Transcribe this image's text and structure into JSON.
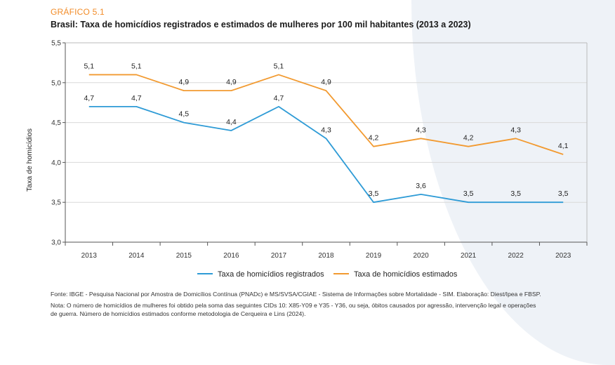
{
  "figure": {
    "kicker": "GRÁFICO 5.1",
    "title": "Brasil: Taxa de homicídios registrados e estimados de mulheres por 100 mil habitantes (2013 a 2023)",
    "source": "Fonte: IBGE - Pesquisa Nacional por Amostra de Domicílios Contínua (PNADc) e MS/SVSA/CGIAE - Sistema de Informações sobre Mortalidade - SIM. Elaboração: Diest/Ipea e FBSP.",
    "note_line1": "Nota: O número de homicídios de mulheres foi obtido pela soma das seguintes CIDs 10: X85-Y09 e Y35 - Y36, ou seja, óbitos causados por agressão, intervenção legal e operações",
    "note_line2": "de guerra. Número de homicídios estimados conforme metodologia de Cerqueira e Lins (2024)."
  },
  "chart_data": {
    "type": "line",
    "title": "Brasil: Taxa de homicídios registrados e estimados de mulheres por 100 mil habitantes (2013 a 2023)",
    "xlabel": "",
    "ylabel": "Taxa de homicídios",
    "x": [
      "2013",
      "2014",
      "2015",
      "2016",
      "2017",
      "2018",
      "2019",
      "2020",
      "2021",
      "2022",
      "2023"
    ],
    "ylim": [
      3.0,
      5.5
    ],
    "yticks": [
      3.0,
      3.5,
      4.0,
      4.5,
      5.0,
      5.5
    ],
    "ytick_labels": [
      "3,0",
      "3,5",
      "4,0",
      "4,5",
      "5,0",
      "5,5"
    ],
    "grid": "horizontal",
    "legend_position": "bottom",
    "series": [
      {
        "name": "Taxa de homicídios registrados",
        "color": "#2e9bd6",
        "values": [
          4.7,
          4.7,
          4.5,
          4.4,
          4.7,
          4.3,
          3.5,
          3.6,
          3.5,
          3.5,
          3.5
        ],
        "labels": [
          "4,7",
          "4,7",
          "4,5",
          "4,4",
          "4,7",
          "4,3",
          "3,5",
          "3,6",
          "3,5",
          "3,5",
          "3,5"
        ]
      },
      {
        "name": "Taxa de homicídios estimados",
        "color": "#f29a30",
        "values": [
          5.1,
          5.1,
          4.9,
          4.9,
          5.1,
          4.9,
          4.2,
          4.3,
          4.2,
          4.3,
          4.1
        ],
        "labels": [
          "5,1",
          "5,1",
          "4,9",
          "4,9",
          "5,1",
          "4,9",
          "4,2",
          "4,3",
          "4,2",
          "4,3",
          "4,1"
        ]
      }
    ]
  }
}
